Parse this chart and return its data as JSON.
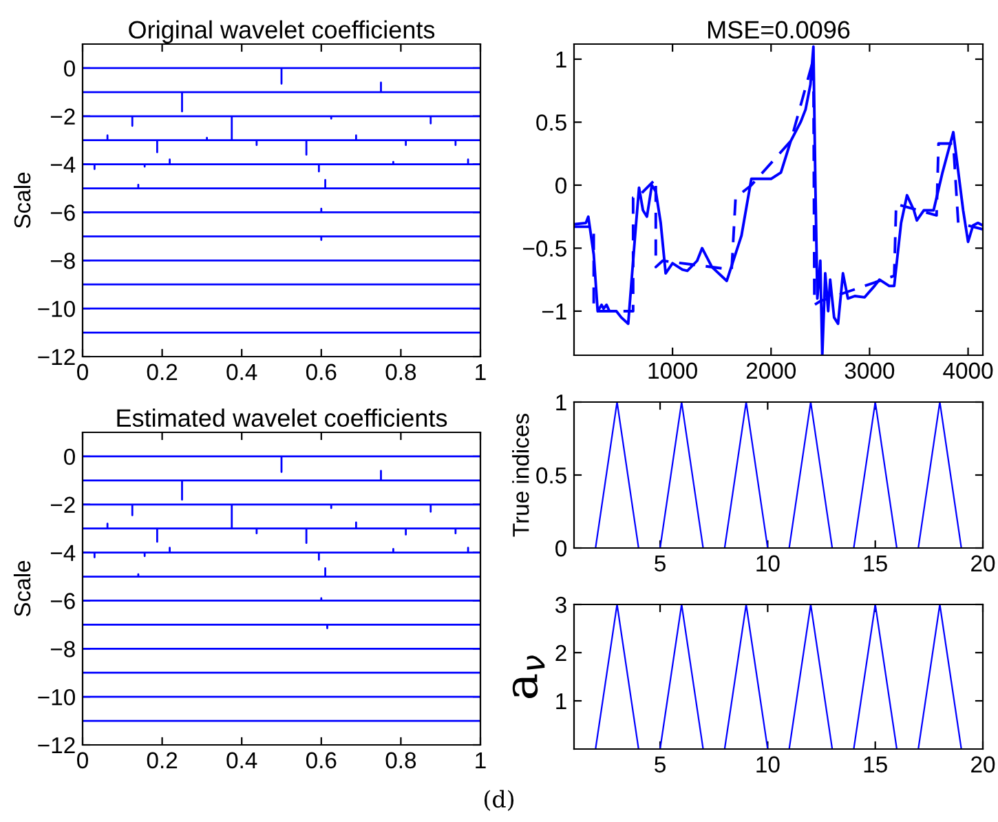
{
  "chart_data": [
    {
      "type": "line",
      "title": "Original wavelet coefficients",
      "ylabel": "Scale",
      "xlim": [
        0,
        1
      ],
      "xticks": [
        0,
        0.2,
        0.4,
        0.6,
        0.8,
        1
      ],
      "ylim": [
        -12,
        1
      ],
      "yticks": [
        {
          "value": -12,
          "label": "−12"
        },
        {
          "value": -10,
          "label": "−10"
        },
        {
          "value": -8,
          "label": "−8"
        },
        {
          "value": -6,
          "label": "−6"
        },
        {
          "value": -4,
          "label": "−4"
        },
        {
          "value": -2,
          "label": "−2"
        },
        0
      ],
      "grid": false,
      "legend": false,
      "series": [
        {
          "color": "#0000ff",
          "x": [
            0,
            0.5,
            0.5,
            0.5,
            1
          ],
          "values": [
            0,
            0,
            -0.65,
            0,
            0
          ]
        },
        {
          "color": "#0000ff",
          "x": [
            0,
            0.25,
            0.25,
            0.25,
            0.75,
            0.75,
            0.75,
            1
          ],
          "values": [
            -1,
            -1,
            -1.8,
            -1,
            -1,
            -0.6,
            -1,
            -1
          ]
        },
        {
          "color": "#0000ff",
          "x": [
            0,
            0.125,
            0.125,
            0.125,
            0.375,
            0.375,
            0.375,
            0.625,
            0.625,
            0.625,
            0.875,
            0.875,
            0.875,
            1
          ],
          "values": [
            -2,
            -2,
            -2.4,
            -2,
            -2,
            -3,
            -2,
            -2,
            -2.1,
            -2,
            -2,
            -2.3,
            -2,
            -2
          ]
        },
        {
          "color": "#0000ff",
          "x": [
            0,
            0.0625,
            0.0625,
            0.0625,
            0.1875,
            0.1875,
            0.1875,
            0.3125,
            0.3125,
            0.3125,
            0.4375,
            0.4375,
            0.4375,
            0.5625,
            0.5625,
            0.5625,
            0.6875,
            0.6875,
            0.6875,
            0.8125,
            0.8125,
            0.8125,
            0.9375,
            0.9375,
            0.9375,
            1
          ],
          "values": [
            -3,
            -3,
            -2.8,
            -3,
            -3,
            -3.5,
            -3,
            -3,
            -2.9,
            -3,
            -3,
            -3.2,
            -3,
            -3,
            -3.6,
            -3,
            -3,
            -2.8,
            -3,
            -3,
            -3.2,
            -3,
            -3,
            -3.2,
            -3,
            -3
          ]
        },
        {
          "color": "#0000ff",
          "x": [
            0,
            0.03,
            0.03,
            0.03,
            0.156,
            0.156,
            0.156,
            0.219,
            0.219,
            0.219,
            0.594,
            0.594,
            0.594,
            0.781,
            0.781,
            0.781,
            0.969,
            0.969,
            0.969,
            1
          ],
          "values": [
            -4,
            -4,
            -4.2,
            -4,
            -4,
            -4.1,
            -4,
            -4,
            -3.8,
            -4,
            -4,
            -4.3,
            -4,
            -4,
            -3.9,
            -4,
            -4,
            -3.8,
            -4,
            -4
          ]
        },
        {
          "color": "#0000ff",
          "x": [
            0,
            0.14,
            0.14,
            0.14,
            0.61,
            0.61,
            0.61,
            1
          ],
          "values": [
            -5,
            -5,
            -4.85,
            -5,
            -5,
            -4.65,
            -5,
            -5
          ]
        },
        {
          "color": "#0000ff",
          "x": [
            0,
            0.6,
            0.6,
            0.6,
            1
          ],
          "values": [
            -6,
            -6,
            -5.85,
            -6,
            -6
          ]
        },
        {
          "color": "#0000ff",
          "x": [
            0,
            0.6,
            0.6,
            0.6,
            1
          ],
          "values": [
            -7,
            -7,
            -7.15,
            -7,
            -7
          ]
        },
        {
          "color": "#0000ff",
          "x": [
            0,
            1
          ],
          "values": [
            -8,
            -8
          ]
        },
        {
          "color": "#0000ff",
          "x": [
            0,
            1
          ],
          "values": [
            -9,
            -9
          ]
        },
        {
          "color": "#0000ff",
          "x": [
            0,
            1
          ],
          "values": [
            -10,
            -10
          ]
        },
        {
          "color": "#0000ff",
          "x": [
            0,
            1
          ],
          "values": [
            -11,
            -11
          ]
        }
      ]
    },
    {
      "type": "line",
      "title": "MSE=0.0096",
      "xlim": [
        0,
        4150
      ],
      "xticks": [
        1000,
        2000,
        3000,
        4000
      ],
      "ylim": [
        -1.35,
        1.12
      ],
      "yticks": [
        {
          "value": -1,
          "label": "−1"
        },
        {
          "value": -0.5,
          "label": "−0.5"
        },
        0,
        0.5,
        1
      ],
      "grid": false,
      "legend": false,
      "series": [
        {
          "color": "#0000ff",
          "line_style": "solid",
          "x": [
            0,
            120,
            145,
            200,
            240,
            280,
            300,
            330,
            360,
            400,
            430,
            480,
            550,
            620,
            660,
            700,
            740,
            790,
            830,
            880,
            930,
            1000,
            1100,
            1150,
            1250,
            1300,
            1400,
            1550,
            1700,
            1800,
            1880,
            2000,
            2100,
            2200,
            2300,
            2350,
            2400,
            2430,
            2450,
            2470,
            2500,
            2520,
            2550,
            2580,
            2600,
            2640,
            2680,
            2730,
            2780,
            2850,
            2950,
            3050,
            3100,
            3200,
            3250,
            3320,
            3380,
            3450,
            3480,
            3550,
            3650,
            3740,
            3850,
            3950,
            4000,
            4050,
            4100,
            4150
          ],
          "values": [
            -0.31,
            -0.3,
            -0.25,
            -0.55,
            -1.0,
            -0.95,
            -0.98,
            -0.95,
            -1.0,
            -1.0,
            -1.0,
            -1.05,
            -1.1,
            -0.4,
            -0.02,
            -0.2,
            -0.25,
            0.0,
            -0.05,
            -0.3,
            -0.7,
            -0.62,
            -0.67,
            -0.68,
            -0.6,
            -0.5,
            -0.65,
            -0.76,
            -0.4,
            0.05,
            0.05,
            0.05,
            0.1,
            0.35,
            0.5,
            0.6,
            0.8,
            1.1,
            0.0,
            -0.9,
            -0.6,
            -1.35,
            -0.7,
            -1.0,
            -0.75,
            -1.05,
            -1.1,
            -0.7,
            -0.9,
            -0.88,
            -0.89,
            -0.8,
            -0.75,
            -0.8,
            -0.8,
            -0.3,
            -0.08,
            -0.2,
            -0.28,
            -0.2,
            -0.2,
            0.1,
            0.42,
            -0.2,
            -0.45,
            -0.32,
            -0.3,
            -0.32
          ]
        },
        {
          "color": "#0000ff",
          "line_style": "dashed",
          "x": [
            0,
            200,
            200,
            600,
            600,
            640,
            830,
            830,
            900,
            1600,
            1640,
            1800,
            2200,
            2430,
            2440,
            2500,
            3250,
            3270,
            3680,
            3700,
            3850,
            3900,
            4150
          ],
          "values": [
            -0.33,
            -0.33,
            -1.0,
            -1.0,
            -0.1,
            -0.1,
            0.05,
            -0.65,
            -0.6,
            -0.67,
            -0.1,
            0.0,
            0.35,
            1.0,
            -0.95,
            -0.92,
            -0.72,
            -0.15,
            -0.24,
            0.33,
            0.33,
            -0.3,
            -0.35
          ]
        }
      ]
    },
    {
      "type": "line",
      "title": "Estimated wavelet coefficients",
      "ylabel": "Scale",
      "xlim": [
        0,
        1
      ],
      "xticks": [
        0,
        0.2,
        0.4,
        0.6,
        0.8,
        1
      ],
      "ylim": [
        -12,
        1
      ],
      "yticks": [
        {
          "value": -12,
          "label": "−12"
        },
        {
          "value": -10,
          "label": "−10"
        },
        {
          "value": -8,
          "label": "−8"
        },
        {
          "value": -6,
          "label": "−6"
        },
        {
          "value": -4,
          "label": "−4"
        },
        {
          "value": -2,
          "label": "−2"
        },
        0
      ],
      "grid": false,
      "legend": false,
      "series": [
        {
          "color": "#0000ff",
          "x": [
            0,
            0.5,
            0.5,
            0.5,
            1
          ],
          "values": [
            0,
            0,
            -0.65,
            0,
            0
          ]
        },
        {
          "color": "#0000ff",
          "x": [
            0,
            0.25,
            0.25,
            0.25,
            0.75,
            0.75,
            0.75,
            1
          ],
          "values": [
            -1,
            -1,
            -1.8,
            -1,
            -1,
            -0.6,
            -1,
            -1
          ]
        },
        {
          "color": "#0000ff",
          "x": [
            0,
            0.125,
            0.125,
            0.125,
            0.375,
            0.375,
            0.375,
            0.625,
            0.625,
            0.625,
            0.875,
            0.875,
            0.875,
            1
          ],
          "values": [
            -2,
            -2,
            -2.45,
            -2,
            -2,
            -3,
            -2,
            -2,
            -2.15,
            -2,
            -2,
            -2.3,
            -2,
            -2
          ]
        },
        {
          "color": "#0000ff",
          "x": [
            0,
            0.0625,
            0.0625,
            0.0625,
            0.1875,
            0.1875,
            0.1875,
            0.4375,
            0.4375,
            0.4375,
            0.5625,
            0.5625,
            0.5625,
            0.6875,
            0.6875,
            0.6875,
            0.8125,
            0.8125,
            0.8125,
            0.9375,
            0.9375,
            0.9375,
            1
          ],
          "values": [
            -3,
            -3,
            -2.8,
            -3,
            -3,
            -3.55,
            -3,
            -3,
            -3.2,
            -3,
            -3,
            -3.6,
            -3,
            -3,
            -2.75,
            -3,
            -3,
            -3.25,
            -3,
            -3,
            -3.2,
            -3,
            -3
          ]
        },
        {
          "color": "#0000ff",
          "x": [
            0,
            0.03,
            0.03,
            0.03,
            0.156,
            0.156,
            0.156,
            0.219,
            0.219,
            0.219,
            0.594,
            0.594,
            0.594,
            0.781,
            0.781,
            0.781,
            0.969,
            0.969,
            0.969,
            1
          ],
          "values": [
            -4,
            -4,
            -4.2,
            -4,
            -4,
            -4.15,
            -4,
            -4,
            -3.8,
            -4,
            -4,
            -4.3,
            -4,
            -4,
            -3.85,
            -4,
            -4,
            -3.8,
            -4,
            -4
          ]
        },
        {
          "color": "#0000ff",
          "x": [
            0,
            0.14,
            0.14,
            0.14,
            0.61,
            0.61,
            0.61,
            1
          ],
          "values": [
            -5,
            -5,
            -4.9,
            -5,
            -5,
            -4.65,
            -5,
            -5
          ]
        },
        {
          "color": "#0000ff",
          "x": [
            0,
            0.6,
            0.6,
            0.6,
            1
          ],
          "values": [
            -6,
            -6,
            -5.9,
            -6,
            -6
          ]
        },
        {
          "color": "#0000ff",
          "x": [
            0,
            0.615,
            0.615,
            0.615,
            1
          ],
          "values": [
            -7,
            -7,
            -7.15,
            -7,
            -7
          ]
        },
        {
          "color": "#0000ff",
          "x": [
            0,
            1
          ],
          "values": [
            -8,
            -8
          ]
        },
        {
          "color": "#0000ff",
          "x": [
            0,
            1
          ],
          "values": [
            -9,
            -9
          ]
        },
        {
          "color": "#0000ff",
          "x": [
            0,
            1
          ],
          "values": [
            -10,
            -10
          ]
        },
        {
          "color": "#0000ff",
          "x": [
            0,
            1
          ],
          "values": [
            -11,
            -11
          ]
        }
      ]
    },
    {
      "type": "line",
      "ylabel": "True indices",
      "xlim": [
        1,
        20
      ],
      "xticks": [
        5,
        10,
        15,
        20
      ],
      "ylim": [
        0,
        1
      ],
      "yticks": [
        0,
        0.5,
        1
      ],
      "grid": false,
      "legend": false,
      "series": [
        {
          "color": "#0000ff",
          "x": [
            1,
            2,
            3,
            4,
            5,
            6,
            7,
            8,
            9,
            10,
            11,
            12,
            13,
            14,
            15,
            16,
            17,
            18,
            19,
            20
          ],
          "values": [
            0,
            0,
            1,
            0,
            0,
            1,
            0,
            0,
            1,
            0,
            0,
            1,
            0,
            0,
            1,
            0,
            0,
            1,
            0,
            0
          ]
        }
      ]
    },
    {
      "type": "line",
      "ylabel": "a$_{ν}$",
      "xlim": [
        1,
        20
      ],
      "xticks": [
        5,
        10,
        15,
        20
      ],
      "ylim": [
        0,
        3
      ],
      "yticks": [
        1,
        2,
        3
      ],
      "grid": false,
      "legend": false,
      "annotations": [
        "(d)"
      ],
      "series": [
        {
          "color": "#0000ff",
          "x": [
            1,
            2,
            3,
            4,
            5,
            6,
            7,
            8,
            9,
            10,
            11,
            12,
            13,
            14,
            15,
            16,
            17,
            18,
            19,
            20
          ],
          "values": [
            0,
            0,
            3,
            0,
            0,
            3,
            0,
            0,
            3,
            0,
            0,
            3,
            0,
            0,
            3,
            0,
            0,
            3,
            0,
            0
          ]
        }
      ]
    }
  ]
}
